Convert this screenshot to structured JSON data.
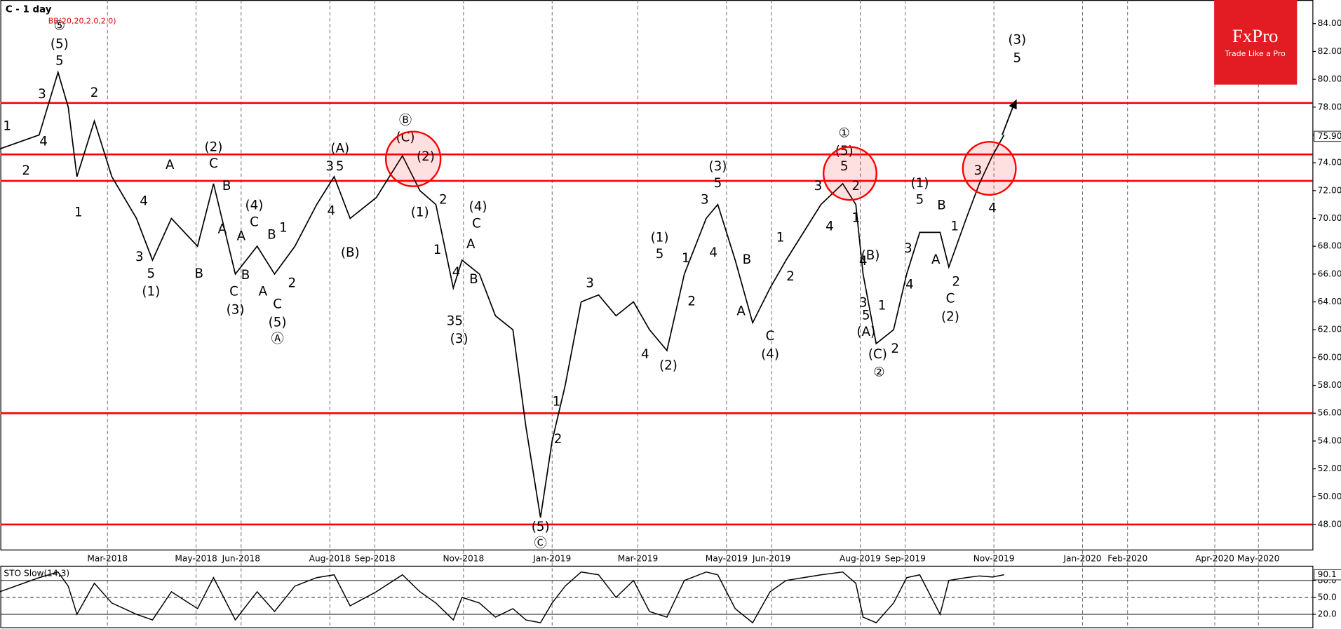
{
  "header": {
    "title": "C - 1 day",
    "indicator": "BB(20,20,2.0,2.0)",
    "logo": "FxPro",
    "slogan": "Trade Like a Pro"
  },
  "chart_data": [
    {
      "type": "line",
      "name": "C",
      "color": "#000000",
      "x": [
        -15,
        12,
        25,
        32,
        38,
        50,
        62,
        79,
        90,
        103,
        121,
        132,
        147,
        162,
        174,
        188,
        203,
        215,
        226,
        244,
        262,
        274,
        285,
        297,
        303,
        315,
        326,
        338,
        347,
        357,
        365,
        374,
        385,
        397,
        409,
        421,
        432,
        444,
        456,
        471,
        479,
        491,
        503,
        515,
        526,
        538,
        550,
        565,
        574,
        579,
        588,
        600,
        609,
        618,
        632,
        638,
        650,
        659,
        668,
        676
      ],
      "values": [
        75,
        76,
        80.5,
        78,
        73,
        77,
        73,
        70,
        67,
        70,
        68,
        72.5,
        66,
        68,
        66,
        68,
        71,
        73,
        70,
        71.5,
        74.5,
        72,
        71,
        65,
        67,
        66,
        63,
        62,
        55,
        48.5,
        54,
        58,
        64,
        64.5,
        63,
        64,
        62,
        60.5,
        66,
        70,
        71,
        67,
        62.5,
        65,
        67,
        69,
        71,
        72.5,
        71,
        66,
        61,
        62,
        66,
        69,
        69,
        66.5,
        70,
        72.5,
        74.5,
        76
      ],
      "xlim": [
        -14.7,
        888.2
      ],
      "ylim": [
        46.2,
        85.7
      ],
      "xticks": [
        {
          "value": 59,
          "label": "Mar-2018"
        },
        {
          "value": 120,
          "label": "May-2018"
        },
        {
          "value": 151,
          "label": "Jun-2018"
        },
        {
          "value": 212,
          "label": "Aug-2018"
        },
        {
          "value": 243,
          "label": "Sep-2018"
        },
        {
          "value": 304,
          "label": "Nov-2018"
        },
        {
          "value": 365,
          "label": "Jan-2019"
        },
        {
          "value": 424,
          "label": "Mar-2019"
        },
        {
          "value": 485,
          "label": "May-2019"
        },
        {
          "value": 516,
          "label": "Jun-2019"
        },
        {
          "value": 577,
          "label": "Aug-2019"
        },
        {
          "value": 608,
          "label": "Sep-2019"
        },
        {
          "value": 669,
          "label": "Nov-2019"
        },
        {
          "value": 730,
          "label": "Jan-2020"
        },
        {
          "value": 761,
          "label": "Feb-2020"
        },
        {
          "value": 821,
          "label": "Apr-2020"
        },
        {
          "value": 851,
          "label": "May-2020"
        }
      ],
      "yticks": [
        {
          "value": 48,
          "label": "48.00"
        },
        {
          "value": 50,
          "label": "50.00"
        },
        {
          "value": 52,
          "label": "52.00"
        },
        {
          "value": 54,
          "label": "54.00"
        },
        {
          "value": 56,
          "label": "56.00"
        },
        {
          "value": 58,
          "label": "58.00"
        },
        {
          "value": 60,
          "label": "60.00"
        },
        {
          "value": 62,
          "label": "62.00"
        },
        {
          "value": 64,
          "label": "64.00"
        },
        {
          "value": 66,
          "label": "66.00"
        },
        {
          "value": 68,
          "label": "68.00"
        },
        {
          "value": 70,
          "label": "70.00"
        },
        {
          "value": 72,
          "label": "72.00"
        },
        {
          "value": 74,
          "label": "74.00"
        },
        {
          "value": 76,
          "label": "76.00"
        },
        {
          "value": 78,
          "label": "78.00"
        },
        {
          "value": 80,
          "label": "80.00"
        },
        {
          "value": 82,
          "label": "82.00"
        },
        {
          "value": 84,
          "label": "84.00"
        }
      ],
      "last_price": {
        "value": 75.9,
        "label": "75.90"
      },
      "levels": [
        78.3,
        74.6,
        72.7,
        56.0,
        48.0
      ],
      "level_color": "#ff0000",
      "grid": true,
      "annotations": [
        {
          "text": "⑤",
          "x": 26,
          "y": 83.8
        },
        {
          "text": "(5)",
          "x": 26,
          "y": 82.5
        },
        {
          "text": "5",
          "x": 26,
          "y": 81.3
        },
        {
          "text": "3",
          "x": 14,
          "y": 78.9
        },
        {
          "text": "4",
          "x": 15,
          "y": 75.5
        },
        {
          "text": "1",
          "x": -10,
          "y": 76.6
        },
        {
          "text": "2",
          "x": 3,
          "y": 73.4
        },
        {
          "text": "2",
          "x": 50,
          "y": 79
        },
        {
          "text": "1",
          "x": 39,
          "y": 70.4
        },
        {
          "text": "A",
          "x": 102,
          "y": 73.8
        },
        {
          "text": "4",
          "x": 84,
          "y": 71.2
        },
        {
          "text": "3",
          "x": 81,
          "y": 67.2
        },
        {
          "text": "5",
          "x": 89,
          "y": 66
        },
        {
          "text": "(1)",
          "x": 89,
          "y": 64.7
        },
        {
          "text": "B",
          "x": 122,
          "y": 66
        },
        {
          "text": "(2)",
          "x": 132,
          "y": 75.1
        },
        {
          "text": "C",
          "x": 132,
          "y": 73.9
        },
        {
          "text": "B",
          "x": 141,
          "y": 72.3
        },
        {
          "text": "A",
          "x": 138,
          "y": 69.2
        },
        {
          "text": "A",
          "x": 151,
          "y": 68.7
        },
        {
          "text": "C",
          "x": 146,
          "y": 64.7
        },
        {
          "text": "(3)",
          "x": 147,
          "y": 63.4
        },
        {
          "text": "B",
          "x": 154,
          "y": 65.9
        },
        {
          "text": "(4)",
          "x": 160,
          "y": 70.9
        },
        {
          "text": "C",
          "x": 160,
          "y": 69.7
        },
        {
          "text": "B",
          "x": 172,
          "y": 68.8
        },
        {
          "text": "A",
          "x": 166,
          "y": 64.7
        },
        {
          "text": "1",
          "x": 180,
          "y": 69.3
        },
        {
          "text": "2",
          "x": 186,
          "y": 65.3
        },
        {
          "text": "C",
          "x": 176,
          "y": 63.8
        },
        {
          "text": "(5)",
          "x": 176,
          "y": 62.5
        },
        {
          "text": "Ⓐ",
          "x": 176,
          "y": 61.3
        },
        {
          "text": "(A)",
          "x": 219,
          "y": 75
        },
        {
          "text": "3",
          "x": 212,
          "y": 73.7
        },
        {
          "text": "5",
          "x": 219,
          "y": 73.7
        },
        {
          "text": "4",
          "x": 213,
          "y": 70.5
        },
        {
          "text": "(B)",
          "x": 226,
          "y": 67.5
        },
        {
          "text": "Ⓑ",
          "x": 264,
          "y": 77
        },
        {
          "text": "(C)",
          "x": 264,
          "y": 75.8
        },
        {
          "text": "(2)",
          "x": 278,
          "y": 74.4
        },
        {
          "text": "(1)",
          "x": 274,
          "y": 70.4
        },
        {
          "text": "2",
          "x": 290,
          "y": 71.3
        },
        {
          "text": "1",
          "x": 286,
          "y": 67.7
        },
        {
          "text": "(4)",
          "x": 314,
          "y": 70.8
        },
        {
          "text": "C",
          "x": 313,
          "y": 69.6
        },
        {
          "text": "A",
          "x": 309,
          "y": 68.1
        },
        {
          "text": "B",
          "x": 311,
          "y": 65.6
        },
        {
          "text": "4",
          "x": 299,
          "y": 66.1
        },
        {
          "text": "35",
          "x": 298,
          "y": 62.6
        },
        {
          "text": "(3)",
          "x": 301,
          "y": 61.3
        },
        {
          "text": "(5)",
          "x": 357,
          "y": 47.8
        },
        {
          "text": "Ⓒ",
          "x": 357,
          "y": 46.6
        },
        {
          "text": "1",
          "x": 368,
          "y": 56.8
        },
        {
          "text": "2",
          "x": 369,
          "y": 54.1
        },
        {
          "text": "3",
          "x": 391,
          "y": 65.3
        },
        {
          "text": "4",
          "x": 429,
          "y": 60.2
        },
        {
          "text": "(2)",
          "x": 445,
          "y": 59.4
        },
        {
          "text": "(1)",
          "x": 439,
          "y": 68.6
        },
        {
          "text": "5",
          "x": 439,
          "y": 67.4
        },
        {
          "text": "1",
          "x": 457,
          "y": 67.1
        },
        {
          "text": "2",
          "x": 461,
          "y": 64
        },
        {
          "text": "3",
          "x": 470,
          "y": 71.3
        },
        {
          "text": "4",
          "x": 476,
          "y": 67.5
        },
        {
          "text": "(3)",
          "x": 479,
          "y": 73.7
        },
        {
          "text": "5",
          "x": 479,
          "y": 72.5
        },
        {
          "text": "B",
          "x": 499,
          "y": 67
        },
        {
          "text": "A",
          "x": 495,
          "y": 63.3
        },
        {
          "text": "C",
          "x": 515,
          "y": 61.5
        },
        {
          "text": "(4)",
          "x": 515,
          "y": 60.2
        },
        {
          "text": "1",
          "x": 522,
          "y": 68.6
        },
        {
          "text": "2",
          "x": 529,
          "y": 65.8
        },
        {
          "text": "4",
          "x": 556,
          "y": 69.4
        },
        {
          "text": "3",
          "x": 548,
          "y": 72.3
        },
        {
          "text": "①",
          "x": 566,
          "y": 76.1
        },
        {
          "text": "(5)",
          "x": 566,
          "y": 74.8
        },
        {
          "text": "5",
          "x": 566,
          "y": 73.7
        },
        {
          "text": "2",
          "x": 574,
          "y": 72.3
        },
        {
          "text": "1",
          "x": 574,
          "y": 70
        },
        {
          "text": "(B)",
          "x": 584,
          "y": 67.3
        },
        {
          "text": "4",
          "x": 579,
          "y": 66.9
        },
        {
          "text": "3",
          "x": 579,
          "y": 63.9
        },
        {
          "text": "5",
          "x": 581,
          "y": 63
        },
        {
          "text": "(A)",
          "x": 581,
          "y": 61.8
        },
        {
          "text": "(C)",
          "x": 589,
          "y": 60.2
        },
        {
          "text": "②",
          "x": 590,
          "y": 58.9
        },
        {
          "text": "1",
          "x": 592,
          "y": 63.7
        },
        {
          "text": "2",
          "x": 601,
          "y": 60.6
        },
        {
          "text": "(1)",
          "x": 618,
          "y": 72.5
        },
        {
          "text": "5",
          "x": 618,
          "y": 71.3
        },
        {
          "text": "3",
          "x": 610,
          "y": 67.8
        },
        {
          "text": "4",
          "x": 611,
          "y": 65.2
        },
        {
          "text": "A",
          "x": 629,
          "y": 67
        },
        {
          "text": "B",
          "x": 633,
          "y": 70.9
        },
        {
          "text": "1",
          "x": 642,
          "y": 69.4
        },
        {
          "text": "2",
          "x": 643,
          "y": 65.4
        },
        {
          "text": "C",
          "x": 639,
          "y": 64.2
        },
        {
          "text": "(2)",
          "x": 639,
          "y": 62.9
        },
        {
          "text": "3",
          "x": 658,
          "y": 73.4
        },
        {
          "text": "4",
          "x": 668,
          "y": 70.7
        },
        {
          "text": "(3)",
          "x": 685,
          "y": 82.8
        },
        {
          "text": "5",
          "x": 685,
          "y": 81.5
        }
      ]
    },
    {
      "type": "line",
      "title": "STO Slow(14,3)",
      "color": "#000000",
      "x": [
        -15,
        12,
        25,
        32,
        38,
        50,
        62,
        79,
        90,
        103,
        121,
        132,
        147,
        162,
        174,
        188,
        203,
        215,
        226,
        244,
        262,
        274,
        285,
        297,
        303,
        315,
        326,
        338,
        347,
        357,
        365,
        374,
        385,
        397,
        409,
        421,
        432,
        444,
        456,
        471,
        479,
        491,
        503,
        515,
        526,
        538,
        550,
        565,
        574,
        579,
        588,
        600,
        609,
        618,
        632,
        638,
        650,
        659,
        668,
        676
      ],
      "values": [
        60,
        85,
        95,
        70,
        20,
        75,
        40,
        20,
        10,
        60,
        30,
        85,
        10,
        60,
        25,
        70,
        85,
        90,
        35,
        60,
        90,
        60,
        40,
        10,
        50,
        40,
        15,
        30,
        10,
        5,
        40,
        70,
        95,
        90,
        50,
        80,
        25,
        15,
        80,
        95,
        90,
        30,
        5,
        60,
        80,
        85,
        90,
        95,
        75,
        15,
        5,
        40,
        85,
        90,
        20,
        80,
        85,
        88,
        86,
        90.1
      ],
      "xlim": [
        -14.7,
        888.2
      ],
      "ylim": [
        0,
        100
      ],
      "yticks": [
        {
          "value": 20,
          "label": "20.0"
        },
        {
          "value": 50,
          "label": "50.0"
        },
        {
          "value": 80,
          "label": "80.0"
        }
      ],
      "last_value": {
        "value": 90.1,
        "label": "90.1"
      }
    }
  ]
}
